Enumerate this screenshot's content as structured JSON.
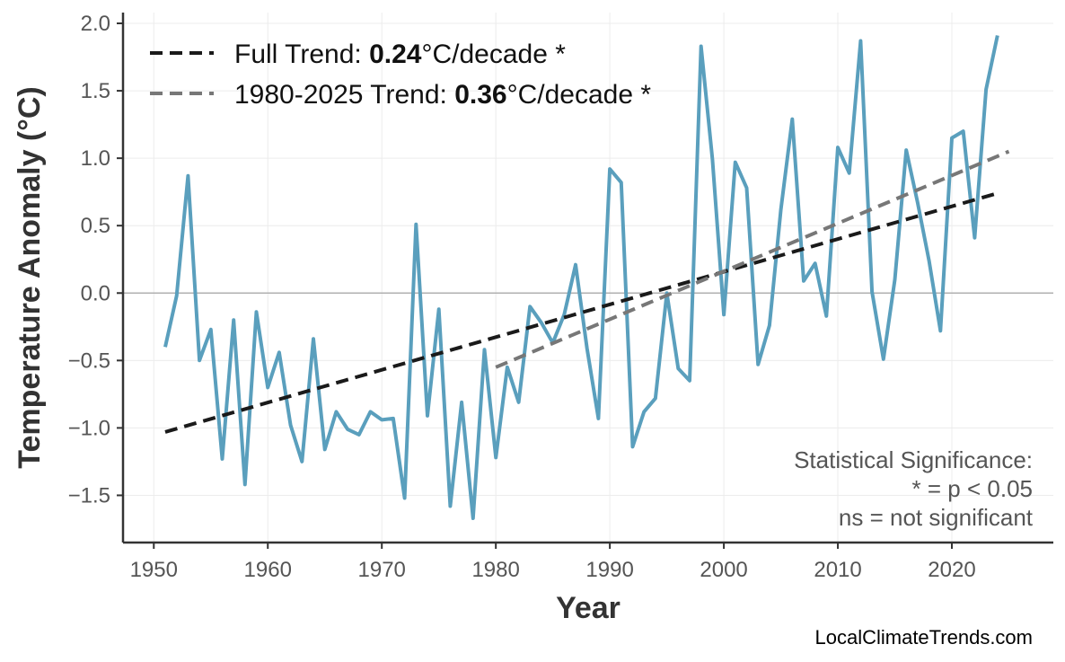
{
  "chart_data": {
    "type": "line",
    "xlabel": "Year",
    "ylabel": "Temperature Anomaly (°C)",
    "xlim": [
      1947.3,
      2028.9
    ],
    "ylim": [
      -1.85,
      2.08
    ],
    "xticks": [
      1950,
      1960,
      1970,
      1980,
      1990,
      2000,
      2010,
      2020
    ],
    "yticks": [
      -1.5,
      -1.0,
      -0.5,
      0.0,
      0.5,
      1.0,
      1.5,
      2.0
    ],
    "ytick_labels": [
      "−1.5",
      "−1.0",
      "−0.5",
      "0.0",
      "0.5",
      "1.0",
      "1.5",
      "2.0"
    ],
    "grid": true,
    "zero_line": true,
    "series": [
      {
        "color": "#5a9fbd",
        "x": [
          1951,
          1952,
          1953,
          1954,
          1955,
          1956,
          1957,
          1958,
          1959,
          1960,
          1961,
          1962,
          1963,
          1964,
          1965,
          1966,
          1967,
          1968,
          1969,
          1970,
          1971,
          1972,
          1973,
          1974,
          1975,
          1976,
          1977,
          1978,
          1979,
          1980,
          1981,
          1982,
          1983,
          1984,
          1985,
          1986,
          1987,
          1988,
          1989,
          1990,
          1991,
          1992,
          1993,
          1994,
          1995,
          1996,
          1997,
          1998,
          1999,
          2000,
          2001,
          2002,
          2003,
          2004,
          2005,
          2006,
          2007,
          2008,
          2009,
          2010,
          2011,
          2012,
          2013,
          2014,
          2015,
          2016,
          2017,
          2018,
          2019,
          2020,
          2021,
          2022,
          2023,
          2024
        ],
        "y": [
          -0.4,
          -0.02,
          0.87,
          -0.5,
          -0.27,
          -1.23,
          -0.2,
          -1.42,
          -0.14,
          -0.7,
          -0.44,
          -0.98,
          -1.25,
          -0.34,
          -1.16,
          -0.88,
          -1.01,
          -1.05,
          -0.88,
          -0.94,
          -0.93,
          -1.52,
          0.51,
          -0.91,
          -0.12,
          -1.58,
          -0.81,
          -1.67,
          -0.42,
          -1.22,
          -0.55,
          -0.81,
          -0.1,
          -0.22,
          -0.37,
          -0.16,
          0.21,
          -0.41,
          -0.93,
          0.92,
          0.82,
          -1.14,
          -0.88,
          -0.78,
          0.0,
          -0.56,
          -0.65,
          1.83,
          0.99,
          -0.16,
          0.97,
          0.78,
          -0.53,
          -0.24,
          0.62,
          1.29,
          0.09,
          0.22,
          -0.17,
          1.08,
          0.89,
          1.87,
          0.01,
          -0.49,
          0.1,
          1.06,
          0.67,
          0.24,
          -0.28,
          1.15,
          1.2,
          0.41,
          1.51,
          1.91
        ]
      }
    ],
    "trends": [
      {
        "label_prefix": "Full Trend: ",
        "label_value": "0.24",
        "label_suffix": "°C/decade *",
        "color": "#1a1a1a",
        "x": [
          1951,
          2024
        ],
        "y": [
          -1.03,
          0.74
        ]
      },
      {
        "label_prefix": "1980-2025 Trend: ",
        "label_value": "0.36",
        "label_suffix": "°C/decade *",
        "color": "#777777",
        "x": [
          1980,
          2025
        ],
        "y": [
          -0.55,
          1.05
        ]
      }
    ],
    "legend_position": "top-left",
    "annotation": [
      "Statistical Significance:",
      "* = p < 0.05",
      "ns = not significant"
    ],
    "annotation_position": "bottom-right"
  },
  "footer": {
    "source": "LocalClimateTrends.com"
  }
}
